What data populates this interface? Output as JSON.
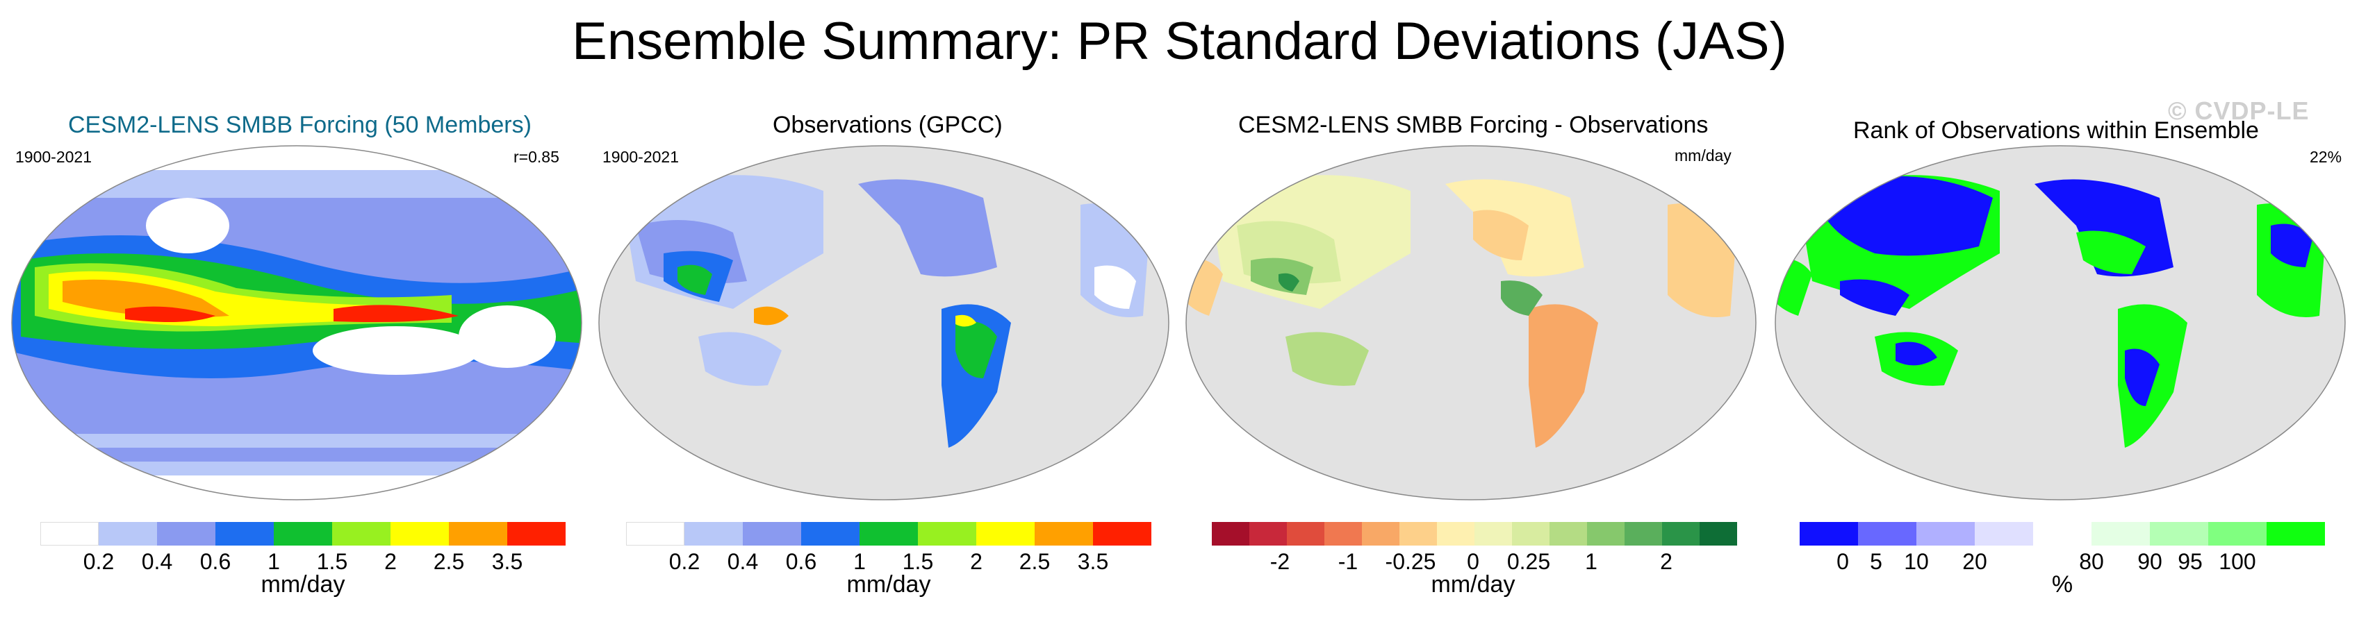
{
  "title": "Ensemble Summary: PR Standard Deviations (JAS)",
  "watermark": "© CVDP-LE",
  "panels": [
    {
      "title": "CESM2-LENS SMBB Forcing (50 Members)",
      "title_color": "#0e6a8a",
      "left_label": "1900-2021",
      "right_label": "r=0.85",
      "colorbar": {
        "colors": [
          "#ffffff",
          "#b8c8f8",
          "#8a9af0",
          "#1e6ef0",
          "#10c030",
          "#98f020",
          "#ffff00",
          "#ffa000",
          "#ff2000"
        ],
        "ticks": [
          "0.2",
          "0.4",
          "0.6",
          "1",
          "1.5",
          "2",
          "2.5",
          "3.5"
        ],
        "unit": "mm/day"
      }
    },
    {
      "title": "Observations (GPCC)",
      "left_label": "1900-2021",
      "right_label": "",
      "colorbar": {
        "colors": [
          "#ffffff",
          "#b8c8f8",
          "#8a9af0",
          "#1e6ef0",
          "#10c030",
          "#98f020",
          "#ffff00",
          "#ffa000",
          "#ff2000"
        ],
        "ticks": [
          "0.2",
          "0.4",
          "0.6",
          "1",
          "1.5",
          "2",
          "2.5",
          "3.5"
        ],
        "unit": "mm/day"
      }
    },
    {
      "title": "CESM2-LENS SMBB Forcing - Observations",
      "left_label": "",
      "right_label": "mm/day",
      "colorbar": {
        "colors": [
          "#a50f2a",
          "#c8283a",
          "#e04c3c",
          "#f07850",
          "#f8a866",
          "#fdd08a",
          "#fef0b0",
          "#f0f4b8",
          "#d8eca0",
          "#b4dc84",
          "#86c86c",
          "#5aaf5c",
          "#2a9448",
          "#0e6e36"
        ],
        "ticks": [
          "-2",
          "-1",
          "-0.25",
          "0",
          "0.25",
          "1",
          "2"
        ],
        "unit": "mm/day"
      }
    },
    {
      "title": "Rank of Observations within Ensemble",
      "left_label": "",
      "right_label": "22%",
      "colorbar": {
        "colors": [
          "#1010ff",
          "#6868ff",
          "#b0b0ff",
          "#e0e0ff",
          "#ffffff",
          "#e4ffe4",
          "#b4ffb4",
          "#80ff80",
          "#10ff10"
        ],
        "ticks": [
          "0",
          "5",
          "10",
          "20",
          "80",
          "90",
          "95",
          "100"
        ],
        "unit": "%"
      }
    }
  ],
  "map_colors": {
    "ocean_gray": "#e2e2e2",
    "land_gray": "#dcdcdc",
    "white": "#ffffff"
  }
}
